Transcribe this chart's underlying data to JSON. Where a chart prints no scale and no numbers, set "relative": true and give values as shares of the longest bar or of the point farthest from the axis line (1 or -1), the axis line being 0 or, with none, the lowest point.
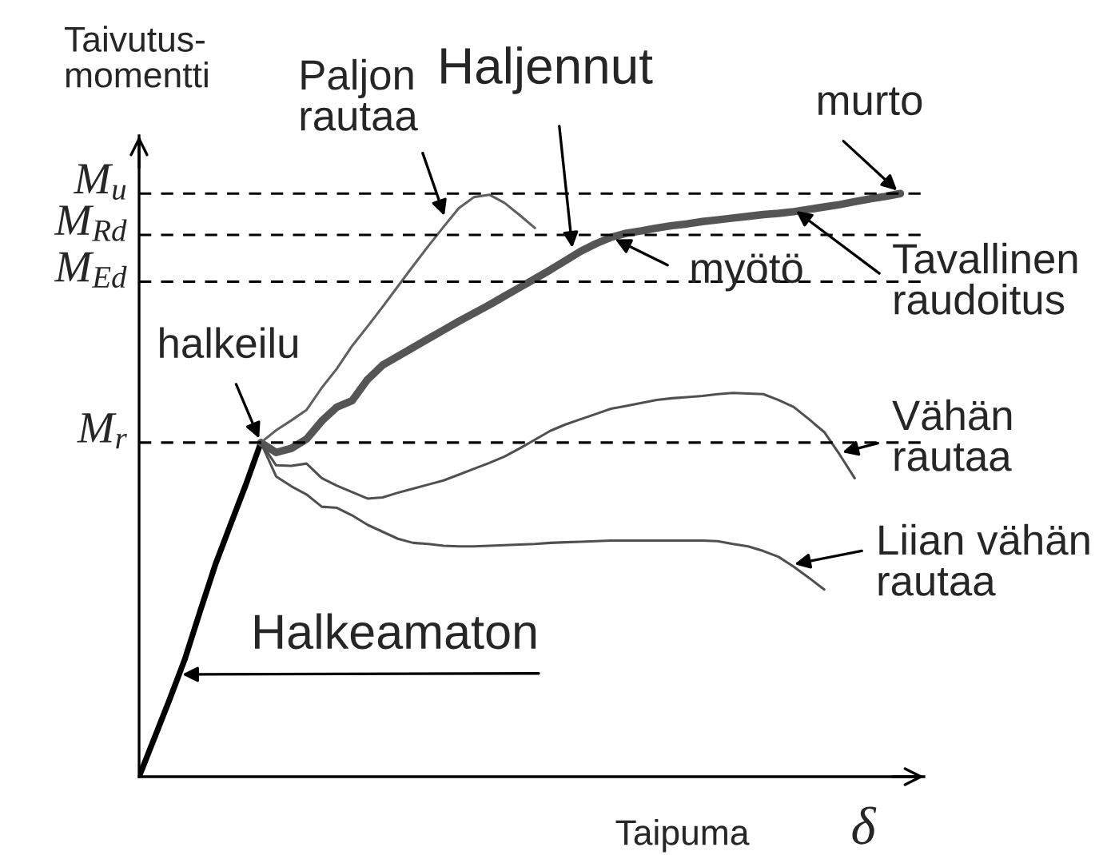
{
  "chart_data": {
    "type": "line",
    "relative": true,
    "xlabel": "Taipuma",
    "ylabel": "Taivutus-\nmomentti",
    "categories": [
      null,
      null,
      null,
      null,
      null,
      null,
      null,
      null,
      null,
      null,
      null,
      null,
      null,
      null,
      null,
      null,
      null,
      null,
      null,
      null,
      null,
      null,
      null,
      null,
      null,
      null,
      null,
      null,
      null,
      null,
      null,
      null,
      null,
      null,
      null,
      null,
      null,
      null,
      null,
      null,
      null,
      null,
      null,
      null,
      null,
      null,
      null,
      null,
      null,
      null,
      null
    ],
    "series": [
      {
        "color": "#000000",
        "values": [
          0,
          0.066,
          0.132,
          0.201,
          0.283,
          0.363,
          0.432,
          0.5,
          0.573,
          null,
          null,
          null,
          null,
          null,
          null,
          null,
          null,
          null,
          null,
          null,
          null,
          null,
          null,
          null,
          null,
          null,
          null,
          null,
          null,
          null,
          null,
          null,
          null,
          null,
          null,
          null,
          null,
          null,
          null,
          null,
          null,
          null,
          null,
          null,
          null,
          null,
          null,
          null,
          null,
          null,
          null
        ]
      },
      {
        "color": "#555555",
        "values": [
          null,
          null,
          null,
          null,
          null,
          null,
          null,
          null,
          0.573,
          0.556,
          0.563,
          0.579,
          0.61,
          0.634,
          0.645,
          0.681,
          0.706,
          0.721,
          0.736,
          0.751,
          0.766,
          0.781,
          0.795,
          0.809,
          0.824,
          0.839,
          0.854,
          0.869,
          0.885,
          0.901,
          0.914,
          0.925,
          0.932,
          0.936,
          0.941,
          0.945,
          0.948,
          0.952,
          0.955,
          0.958,
          0.961,
          0.964,
          0.966,
          0.969,
          0.973,
          0.977,
          0.981,
          0.986,
          0.991,
          0.995,
          1.0
        ]
      },
      {
        "color": "#606060",
        "values": [
          null,
          null,
          null,
          null,
          null,
          null,
          null,
          null,
          0.573,
          0.594,
          0.611,
          0.629,
          0.667,
          0.7,
          0.739,
          0.772,
          0.806,
          0.841,
          0.876,
          0.91,
          0.943,
          0.975,
          0.994,
          0.998,
          0.984,
          0.963,
          0.941,
          null,
          null,
          null,
          null,
          null,
          null,
          null,
          null,
          null,
          null,
          null,
          null,
          null,
          null,
          null,
          null,
          null,
          null,
          null,
          null,
          null,
          null,
          null,
          null
        ]
      },
      {
        "color": "#505050",
        "values": [
          null,
          null,
          null,
          null,
          null,
          null,
          null,
          null,
          0.573,
          0.534,
          0.533,
          0.537,
          0.512,
          0.499,
          0.488,
          0.477,
          0.479,
          0.487,
          0.494,
          0.501,
          0.508,
          0.518,
          0.528,
          0.538,
          0.549,
          0.563,
          0.578,
          0.593,
          0.604,
          0.613,
          0.622,
          0.631,
          0.636,
          0.641,
          0.646,
          0.649,
          0.651,
          0.653,
          0.656,
          0.658,
          0.657,
          0.656,
          0.646,
          0.634,
          0.613,
          0.591,
          0.553,
          0.512,
          null,
          null,
          null
        ]
      },
      {
        "color": "#505050",
        "values": [
          null,
          null,
          null,
          null,
          null,
          null,
          null,
          null,
          0.573,
          0.515,
          0.498,
          0.484,
          0.463,
          0.461,
          0.448,
          0.432,
          0.42,
          0.408,
          0.401,
          0.399,
          0.396,
          0.395,
          0.395,
          0.396,
          0.397,
          0.398,
          0.399,
          0.401,
          0.402,
          0.403,
          0.404,
          0.405,
          0.405,
          0.405,
          0.405,
          0.405,
          0.405,
          0.405,
          0.404,
          0.399,
          0.395,
          0.387,
          0.377,
          0.36,
          0.341,
          0.321,
          null,
          null,
          null,
          null,
          null
        ]
      }
    ],
    "ref_lines": [
      {
        "axis": "y",
        "value": 1.0,
        "label": "M$_{u}$",
        "line_style": "dashed",
        "color": "#000000"
      },
      {
        "axis": "y",
        "value": 0.929,
        "label": "M$_{Rd}$",
        "line_style": "dashed",
        "color": "#000000"
      },
      {
        "axis": "y",
        "value": 0.849,
        "label": "M$_{Ed}$",
        "line_style": "dashed",
        "color": "#000000"
      },
      {
        "axis": "y",
        "value": 0.573,
        "label": "M$_{r}$",
        "line_style": "dashed",
        "color": "#000000"
      }
    ],
    "annotations": [
      "Paljon\nrautaa",
      "Haljennut",
      {
        "text": "murto",
        "y": 1.0
      },
      {
        "text": "myötö",
        "y": 0.925
      },
      "Tavallinen\nraudoitus",
      {
        "text": "halkeilu",
        "y": 0.573
      },
      "Vähän\nrautaa",
      "Liian vähän\nrautaa",
      "Halkeamaton",
      "δ"
    ]
  }
}
